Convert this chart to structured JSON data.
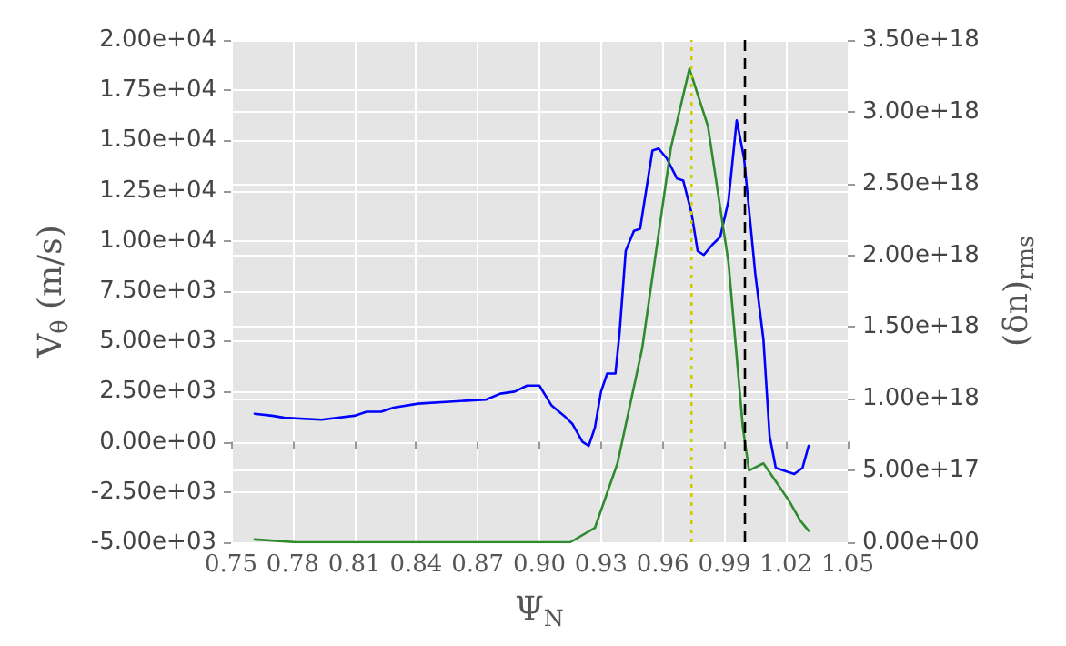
{
  "chart_data": {
    "type": "line",
    "xlabel": "Ψ$_{N}$",
    "ylabel": "V$_{θ}$ (m/s)",
    "y2label": "(δn)$_{rms}$",
    "series": [
      {
        "color": "#0000ff",
        "x": [
          0.7615,
          0.77,
          0.776,
          0.794,
          0.81,
          0.816,
          0.823,
          0.829,
          0.841,
          0.856,
          0.874,
          0.881,
          0.888,
          0.894,
          0.9,
          0.906,
          0.912,
          0.916,
          0.921,
          0.924,
          0.927,
          0.93,
          0.933,
          0.937,
          0.939,
          0.942,
          0.946,
          0.949,
          0.955,
          0.958,
          0.962,
          0.967,
          0.97,
          0.974,
          0.977,
          0.98,
          0.984,
          0.988,
          0.992,
          0.996,
          0.9996,
          1.005,
          1.009,
          1.012,
          1.015,
          1.024,
          1.028,
          1.031
        ],
        "values": [
          1400,
          1300,
          1200,
          1100,
          1300,
          1500,
          1500,
          1700,
          1900,
          2000,
          2100,
          2400,
          2500,
          2800,
          2800,
          1800,
          1300,
          900,
          0,
          -200,
          700,
          2500,
          3400,
          3400,
          5400,
          9500,
          10500,
          10600,
          14500,
          14600,
          14100,
          13100,
          13000,
          11400,
          9500,
          9300,
          9800,
          10200,
          12000,
          16000,
          14100,
          8400,
          5100,
          300,
          -1300,
          -1600,
          -1300,
          -200
        ]
      },
      {
        "color": "#2e8b2e",
        "axis": "y2",
        "x": [
          0.7615,
          0.782,
          0.81,
          0.85,
          0.894,
          0.915,
          0.927,
          0.938,
          0.95,
          0.964,
          0.973,
          0.982,
          0.992,
          0.999,
          1.002,
          1.009,
          1.021,
          1.027,
          1.031
        ],
        "values": [
          2e+16,
          0,
          0,
          0,
          0,
          0,
          1e+17,
          5.5e+17,
          1.35e+18,
          2.75e+18,
          3.3e+18,
          2.9e+18,
          1.95e+18,
          8e+17,
          5e+17,
          5.5e+17,
          3e+17,
          1.5e+17,
          8e+16
        ]
      }
    ],
    "xlim": [
      0.75,
      1.05
    ],
    "xticks": [
      {
        "value": 0.75,
        "label": "0.75"
      },
      {
        "value": 0.78,
        "label": "0.78"
      },
      {
        "value": 0.81,
        "label": "0.81"
      },
      {
        "value": 0.84,
        "label": "0.84"
      },
      {
        "value": 0.87,
        "label": "0.87"
      },
      {
        "value": 0.9,
        "label": "0.90"
      },
      {
        "value": 0.93,
        "label": "0.93"
      },
      {
        "value": 0.96,
        "label": "0.96"
      },
      {
        "value": 0.99,
        "label": "0.99"
      },
      {
        "value": 1.02,
        "label": "1.02"
      },
      {
        "value": 1.05,
        "label": "1.05"
      }
    ],
    "ylim": [
      -5000,
      20000
    ],
    "yticks": [
      {
        "value": -5000,
        "label": "-5.00e+03"
      },
      {
        "value": -2500,
        "label": "-2.50e+03"
      },
      {
        "value": 0,
        "label": "0.00e+00"
      },
      {
        "value": 2500,
        "label": "2.50e+03"
      },
      {
        "value": 5000,
        "label": "5.00e+03"
      },
      {
        "value": 7500,
        "label": "7.50e+03"
      },
      {
        "value": 10000,
        "label": "1.00e+04"
      },
      {
        "value": 12500,
        "label": "1.25e+04"
      },
      {
        "value": 15000,
        "label": "1.50e+04"
      },
      {
        "value": 17500,
        "label": "1.75e+04"
      },
      {
        "value": 20000,
        "label": "2.00e+04"
      }
    ],
    "y2lim": [
      0,
      3.5e+18
    ],
    "y2ticks": [
      {
        "value": 0,
        "label": "0.00e+00"
      },
      {
        "value": 5e+17,
        "label": "5.00e+17"
      },
      {
        "value": 1e+18,
        "label": "1.00e+18"
      },
      {
        "value": 1.5e+18,
        "label": "1.50e+18"
      },
      {
        "value": 2e+18,
        "label": "2.00e+18"
      },
      {
        "value": 2.5e+18,
        "label": "2.50e+18"
      },
      {
        "value": 3e+18,
        "label": "3.00e+18"
      },
      {
        "value": 3.5e+18,
        "label": "3.50e+18"
      }
    ],
    "ref_lines": [
      {
        "axis": "x",
        "value": 0.974,
        "color": "#cccc00",
        "line_style": "dotted"
      },
      {
        "axis": "x",
        "value": 1.0,
        "color": "#000000",
        "line_style": "dashed"
      }
    ],
    "grid": true,
    "marker": "none",
    "line_style": "solid"
  }
}
